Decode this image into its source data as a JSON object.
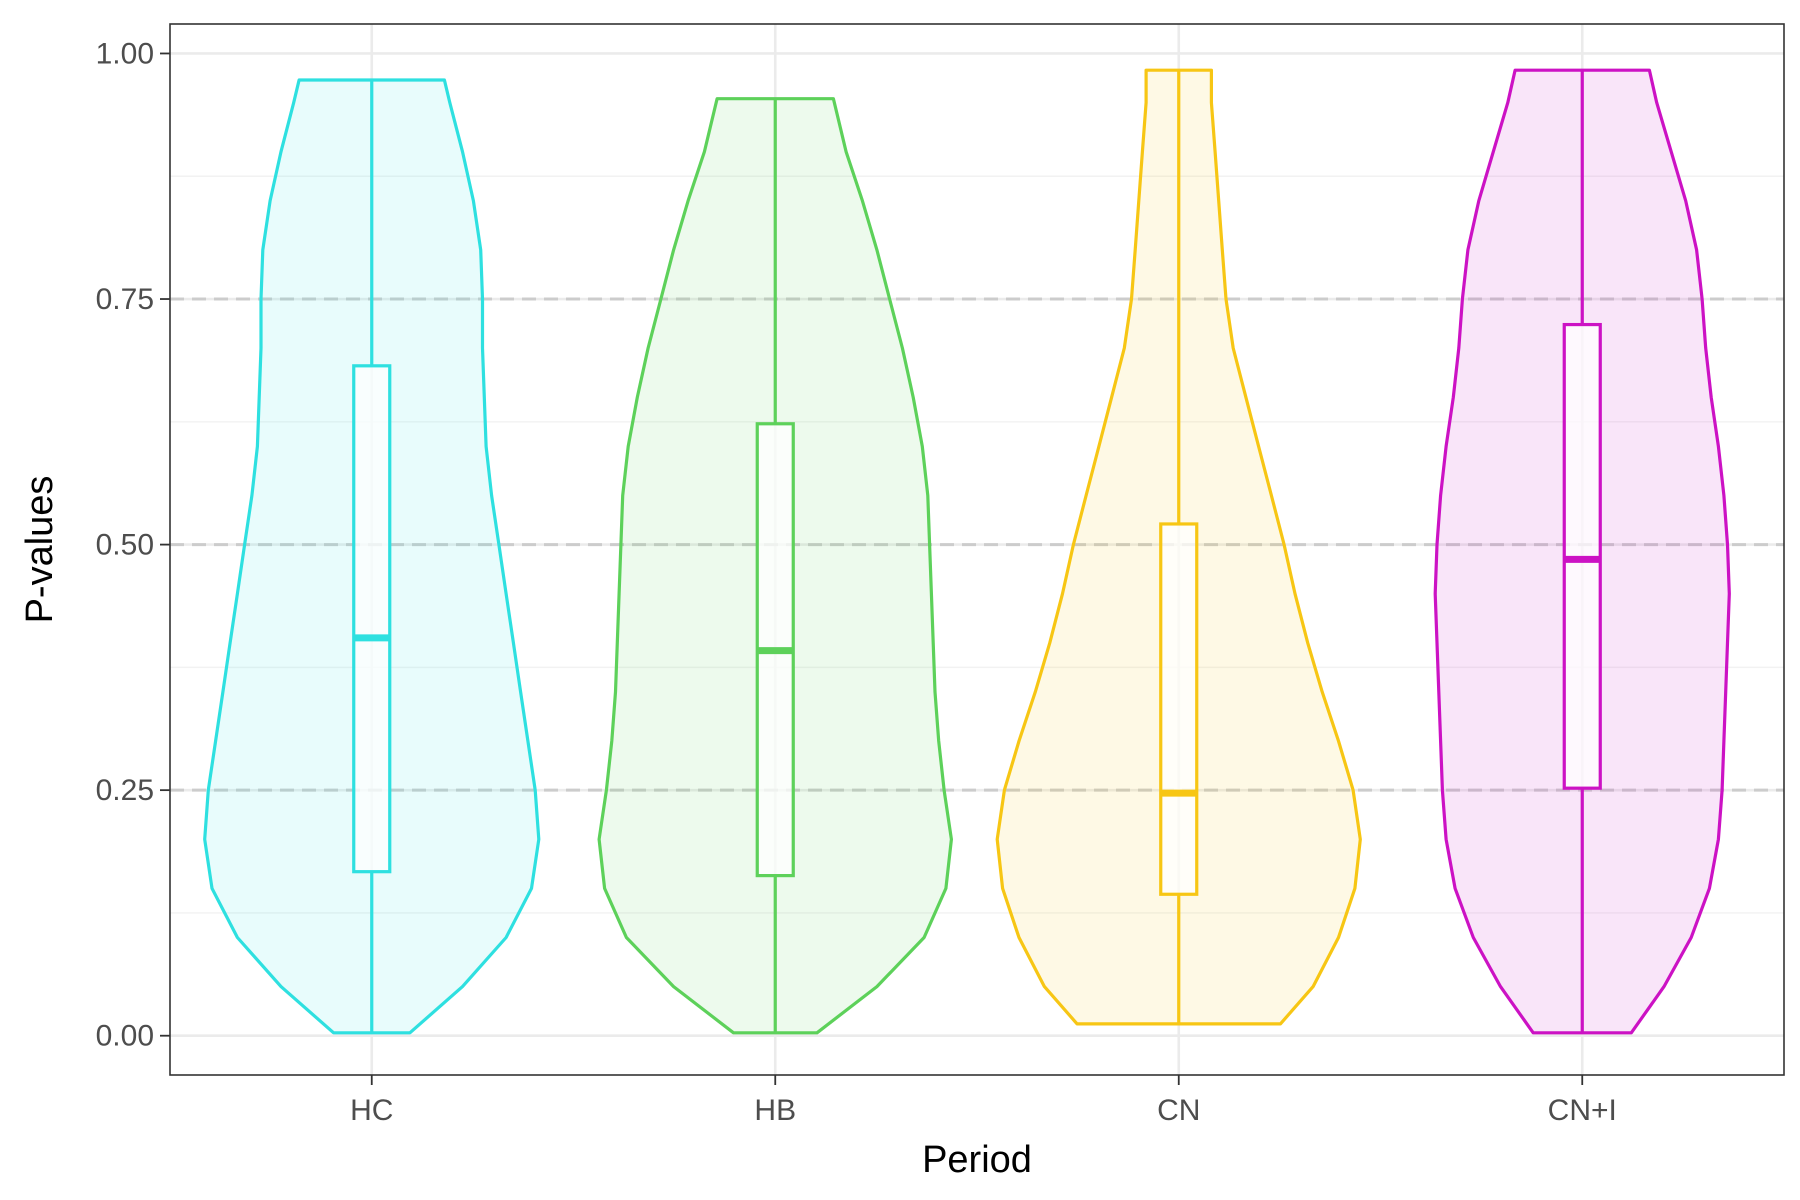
{
  "chart_data": {
    "type": "violin",
    "xlabel": "Period",
    "ylabel": "P-values",
    "categories": [
      "HC",
      "HB",
      "CN",
      "CN+I"
    ],
    "ylim": [
      -0.04,
      1.03
    ],
    "yticks": [
      {
        "value": 0.0,
        "label": "0.00"
      },
      {
        "value": 0.25,
        "label": "0.25"
      },
      {
        "value": 0.5,
        "label": "0.50"
      },
      {
        "value": 0.75,
        "label": "0.75"
      },
      {
        "value": 1.0,
        "label": "1.00"
      }
    ],
    "reference_lines": [
      0.25,
      0.5,
      0.75
    ],
    "reference_line_style": "dashed",
    "grid": true,
    "legend": "none",
    "series": [
      {
        "category": "HC",
        "color": "#2ee0e0",
        "min": 0.003,
        "q1": 0.167,
        "median": 0.405,
        "q3": 0.682,
        "max": 0.973,
        "density": [
          [
            0.003,
            0.21
          ],
          [
            0.05,
            0.5
          ],
          [
            0.1,
            0.74
          ],
          [
            0.15,
            0.88
          ],
          [
            0.2,
            0.92
          ],
          [
            0.25,
            0.9
          ],
          [
            0.3,
            0.86
          ],
          [
            0.35,
            0.82
          ],
          [
            0.4,
            0.78
          ],
          [
            0.45,
            0.74
          ],
          [
            0.5,
            0.7
          ],
          [
            0.55,
            0.66
          ],
          [
            0.6,
            0.63
          ],
          [
            0.65,
            0.62
          ],
          [
            0.7,
            0.61
          ],
          [
            0.75,
            0.61
          ],
          [
            0.8,
            0.6
          ],
          [
            0.85,
            0.56
          ],
          [
            0.9,
            0.5
          ],
          [
            0.95,
            0.43
          ],
          [
            0.973,
            0.4
          ]
        ]
      },
      {
        "category": "HB",
        "color": "#5dd15a",
        "min": 0.003,
        "q1": 0.163,
        "median": 0.392,
        "q3": 0.623,
        "max": 0.954,
        "density": [
          [
            0.003,
            0.23
          ],
          [
            0.05,
            0.56
          ],
          [
            0.1,
            0.82
          ],
          [
            0.15,
            0.94
          ],
          [
            0.2,
            0.97
          ],
          [
            0.25,
            0.93
          ],
          [
            0.3,
            0.9
          ],
          [
            0.35,
            0.88
          ],
          [
            0.4,
            0.87
          ],
          [
            0.45,
            0.86
          ],
          [
            0.5,
            0.85
          ],
          [
            0.55,
            0.84
          ],
          [
            0.6,
            0.81
          ],
          [
            0.65,
            0.76
          ],
          [
            0.7,
            0.7
          ],
          [
            0.75,
            0.63
          ],
          [
            0.8,
            0.56
          ],
          [
            0.85,
            0.48
          ],
          [
            0.9,
            0.39
          ],
          [
            0.954,
            0.32
          ]
        ]
      },
      {
        "category": "CN",
        "color": "#f7c614",
        "min": 0.012,
        "q1": 0.144,
        "median": 0.247,
        "q3": 0.521,
        "max": 0.983,
        "density": [
          [
            0.012,
            0.56
          ],
          [
            0.05,
            0.74
          ],
          [
            0.1,
            0.88
          ],
          [
            0.15,
            0.97
          ],
          [
            0.2,
            1.0
          ],
          [
            0.25,
            0.96
          ],
          [
            0.3,
            0.88
          ],
          [
            0.35,
            0.79
          ],
          [
            0.4,
            0.71
          ],
          [
            0.45,
            0.64
          ],
          [
            0.5,
            0.58
          ],
          [
            0.55,
            0.51
          ],
          [
            0.6,
            0.44
          ],
          [
            0.65,
            0.37
          ],
          [
            0.7,
            0.3
          ],
          [
            0.75,
            0.26
          ],
          [
            0.8,
            0.24
          ],
          [
            0.85,
            0.22
          ],
          [
            0.9,
            0.2
          ],
          [
            0.95,
            0.18
          ],
          [
            0.983,
            0.18
          ]
        ]
      },
      {
        "category": "CN+I",
        "color": "#cc12c4",
        "min": 0.003,
        "q1": 0.252,
        "median": 0.485,
        "q3": 0.724,
        "max": 0.983,
        "density": [
          [
            0.003,
            0.27
          ],
          [
            0.05,
            0.45
          ],
          [
            0.1,
            0.6
          ],
          [
            0.15,
            0.7
          ],
          [
            0.2,
            0.75
          ],
          [
            0.25,
            0.77
          ],
          [
            0.3,
            0.78
          ],
          [
            0.35,
            0.79
          ],
          [
            0.4,
            0.8
          ],
          [
            0.45,
            0.81
          ],
          [
            0.5,
            0.8
          ],
          [
            0.55,
            0.78
          ],
          [
            0.6,
            0.75
          ],
          [
            0.65,
            0.71
          ],
          [
            0.7,
            0.68
          ],
          [
            0.75,
            0.66
          ],
          [
            0.8,
            0.63
          ],
          [
            0.85,
            0.57
          ],
          [
            0.9,
            0.49
          ],
          [
            0.95,
            0.41
          ],
          [
            0.983,
            0.37
          ]
        ]
      }
    ]
  }
}
